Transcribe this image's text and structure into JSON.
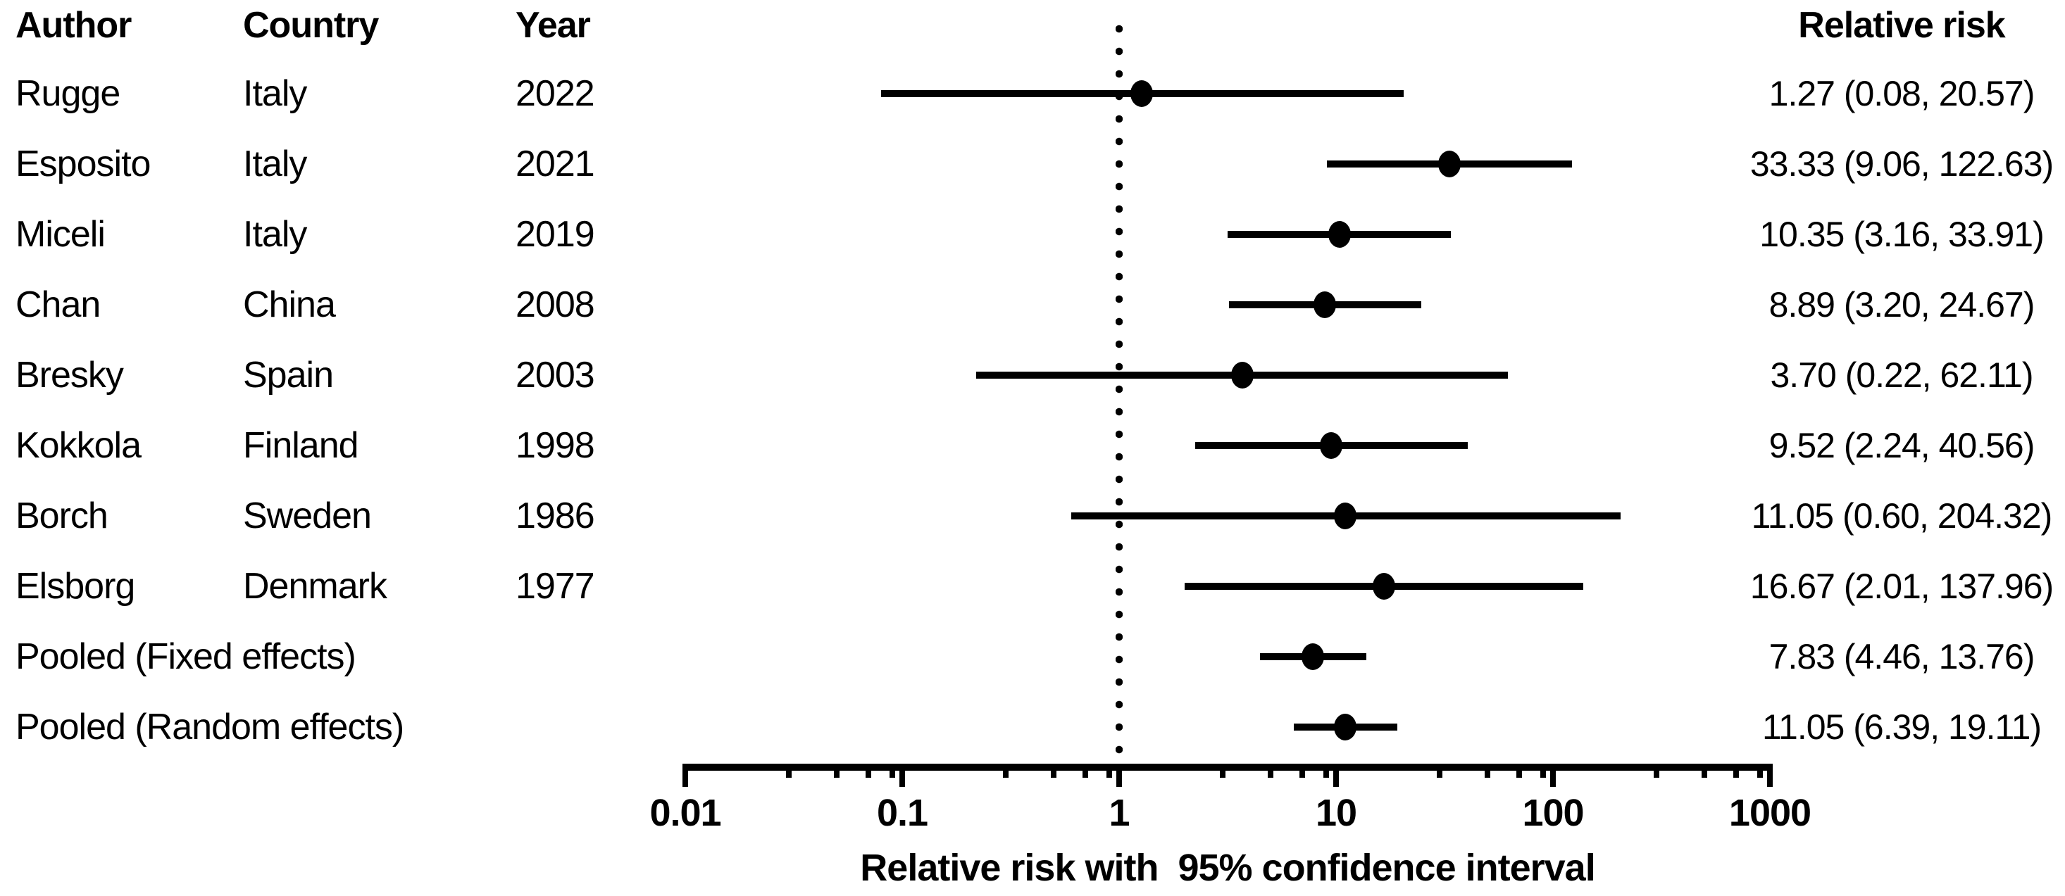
{
  "table": {
    "headers": {
      "author": "Author",
      "country": "Country",
      "year": "Year"
    }
  },
  "rr_header": "Relative risk",
  "axis": {
    "tick_labels": [
      "0.01",
      "0.1",
      "1",
      "10",
      "100",
      "1000"
    ],
    "title": "Relative risk with  95% confidence interval"
  },
  "colors": {
    "ink": "#000000",
    "background": "#ffffff"
  },
  "chart_data": {
    "type": "scatter",
    "subtype": "forest-plot",
    "x_scale": "log",
    "x_range": [
      0.01,
      1000
    ],
    "x_ticks": [
      0.01,
      0.1,
      1,
      10,
      100,
      1000
    ],
    "minor_tick_multipliers": [
      3,
      5,
      7,
      9
    ],
    "reference_line_x": 1,
    "reference_line_style": "dotted",
    "xlabel": "Relative risk with  95% confidence interval",
    "value_column_header": "Relative risk",
    "studies": [
      {
        "author": "Rugge",
        "country": "Italy",
        "year": "2022",
        "rr": 1.27,
        "ci_low": 0.08,
        "ci_high": 20.57,
        "label": "1.27 (0.08, 20.57)"
      },
      {
        "author": "Esposito",
        "country": "Italy",
        "year": "2021",
        "rr": 33.33,
        "ci_low": 9.06,
        "ci_high": 122.63,
        "label": "33.33 (9.06, 122.63)"
      },
      {
        "author": "Miceli",
        "country": "Italy",
        "year": "2019",
        "rr": 10.35,
        "ci_low": 3.16,
        "ci_high": 33.91,
        "label": "10.35 (3.16, 33.91)"
      },
      {
        "author": "Chan",
        "country": "China",
        "year": "2008",
        "rr": 8.89,
        "ci_low": 3.2,
        "ci_high": 24.67,
        "label": "8.89 (3.20, 24.67)"
      },
      {
        "author": "Bresky",
        "country": "Spain",
        "year": "2003",
        "rr": 3.7,
        "ci_low": 0.22,
        "ci_high": 62.11,
        "label": "3.70 (0.22, 62.11)"
      },
      {
        "author": "Kokkola",
        "country": "Finland",
        "year": "1998",
        "rr": 9.52,
        "ci_low": 2.24,
        "ci_high": 40.56,
        "label": "9.52 (2.24, 40.56)"
      },
      {
        "author": "Borch",
        "country": "Sweden",
        "year": "1986",
        "rr": 11.05,
        "ci_low": 0.6,
        "ci_high": 204.32,
        "label": "11.05 (0.60, 204.32)"
      },
      {
        "author": "Elsborg",
        "country": "Denmark",
        "year": "1977",
        "rr": 16.67,
        "ci_low": 2.01,
        "ci_high": 137.96,
        "label": "16.67 (2.01, 137.96)"
      },
      {
        "author": "Pooled (Fixed effects)",
        "rr": 7.83,
        "ci_low": 4.46,
        "ci_high": 13.76,
        "label": "7.83 (4.46, 13.76)"
      },
      {
        "author": "Pooled (Random effects)",
        "rr": 11.05,
        "ci_low": 6.39,
        "ci_high": 19.11,
        "label": "11.05 (6.39, 19.11)"
      }
    ]
  }
}
